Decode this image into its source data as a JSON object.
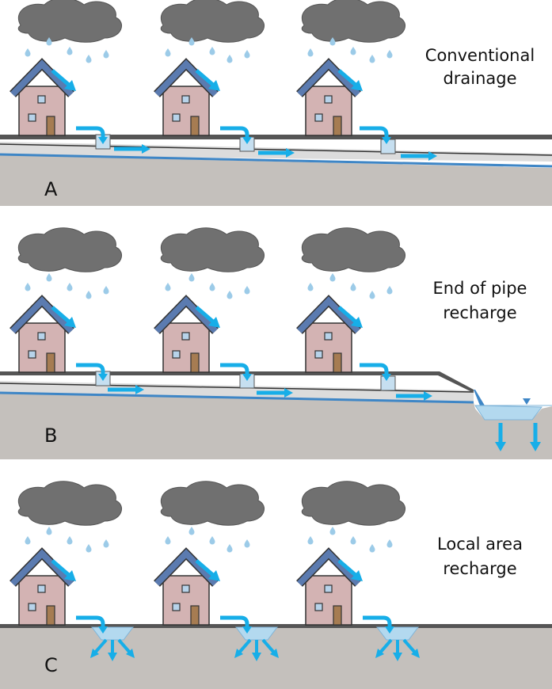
{
  "panels": [
    {
      "letter": "A",
      "caption_lines": [
        "Conventional",
        "drainage"
      ]
    },
    {
      "letter": "B",
      "caption_lines": [
        "End of pipe",
        "recharge"
      ]
    },
    {
      "letter": "C",
      "caption_lines": [
        "Local area",
        "recharge"
      ]
    }
  ],
  "colors": {
    "cloud": "#707070",
    "rain": "#9ccbe8",
    "house_wall": "#d3b3b3",
    "roof": "#5b7bb0",
    "door": "#a67c52",
    "window": "#b7d3ea",
    "ground": "#c4c0bc",
    "water_arrow": "#17aee8",
    "pipe_water": "#3e86c6",
    "pond": "#b3d9ef"
  }
}
